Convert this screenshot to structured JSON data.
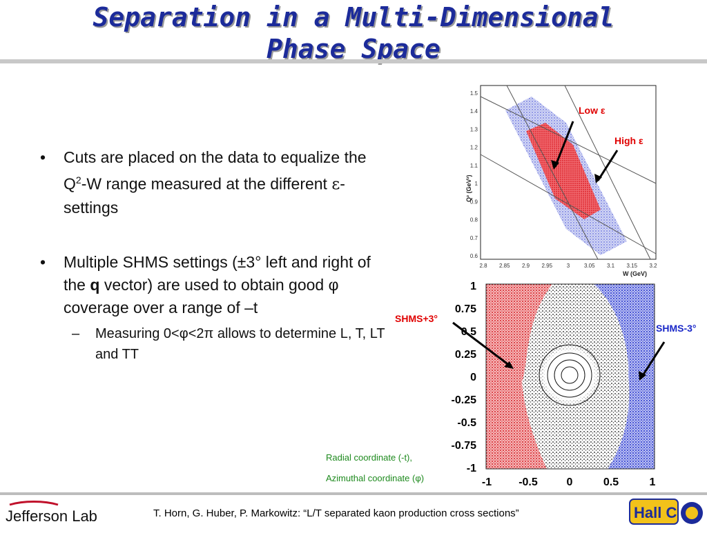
{
  "title": {
    "line1": "Separation in a Multi-Dimensional",
    "line2": "Phase Space"
  },
  "bullets": {
    "b1_pre": "Cuts are placed on the data to equalize the Q",
    "b1_sup": "2",
    "b1_mid": "-W range measured at the different ",
    "b1_eps": "ε",
    "b1_post": "-settings",
    "b2_pre": "Multiple SHMS settings (±3° left and right of the ",
    "b2_bold": "q",
    "b2_post": " vector) are used to obtain good φ coverage over a range of –t",
    "sub1": "Measuring 0<φ<2π allows to determine L, T, LT and TT"
  },
  "plot_top": {
    "x_label": "W (GeV)",
    "y_label": "Q² (GeV²)",
    "x_ticks": [
      "2.8",
      "2.85",
      "2.9",
      "2.95",
      "3",
      "3.05",
      "3.1",
      "3.15",
      "3.2"
    ],
    "y_ticks": [
      "1.5",
      "1.4",
      "1.3",
      "1.2",
      "1.1",
      "1",
      "0.9",
      "0.8",
      "0.7",
      "0.6"
    ],
    "label_low": "Low ε",
    "label_high": "High ε",
    "colors": {
      "low": "#e8202a",
      "high": "#3a46d8",
      "annotation": "#e00000"
    }
  },
  "plot_bottom": {
    "x_ticks": [
      "-1",
      "-0.5",
      "0",
      "0.5",
      "1"
    ],
    "y_ticks": [
      "1",
      "0.75",
      "0.5",
      "0.25",
      "0",
      "-0.25",
      "-0.5",
      "-0.75",
      "-1"
    ],
    "label_left": "SHMS+3°",
    "label_right": "SHMS-3°",
    "caption1": "Radial coordinate (-t),",
    "caption2": "Azimuthal coordinate (φ)"
  },
  "footer": {
    "citation": "T. Horn, G. Huber, P. Markowitz: “L/T separated kaon production cross sections”",
    "logo_left": "Jefferson Lab",
    "logo_right": "Hall C"
  }
}
